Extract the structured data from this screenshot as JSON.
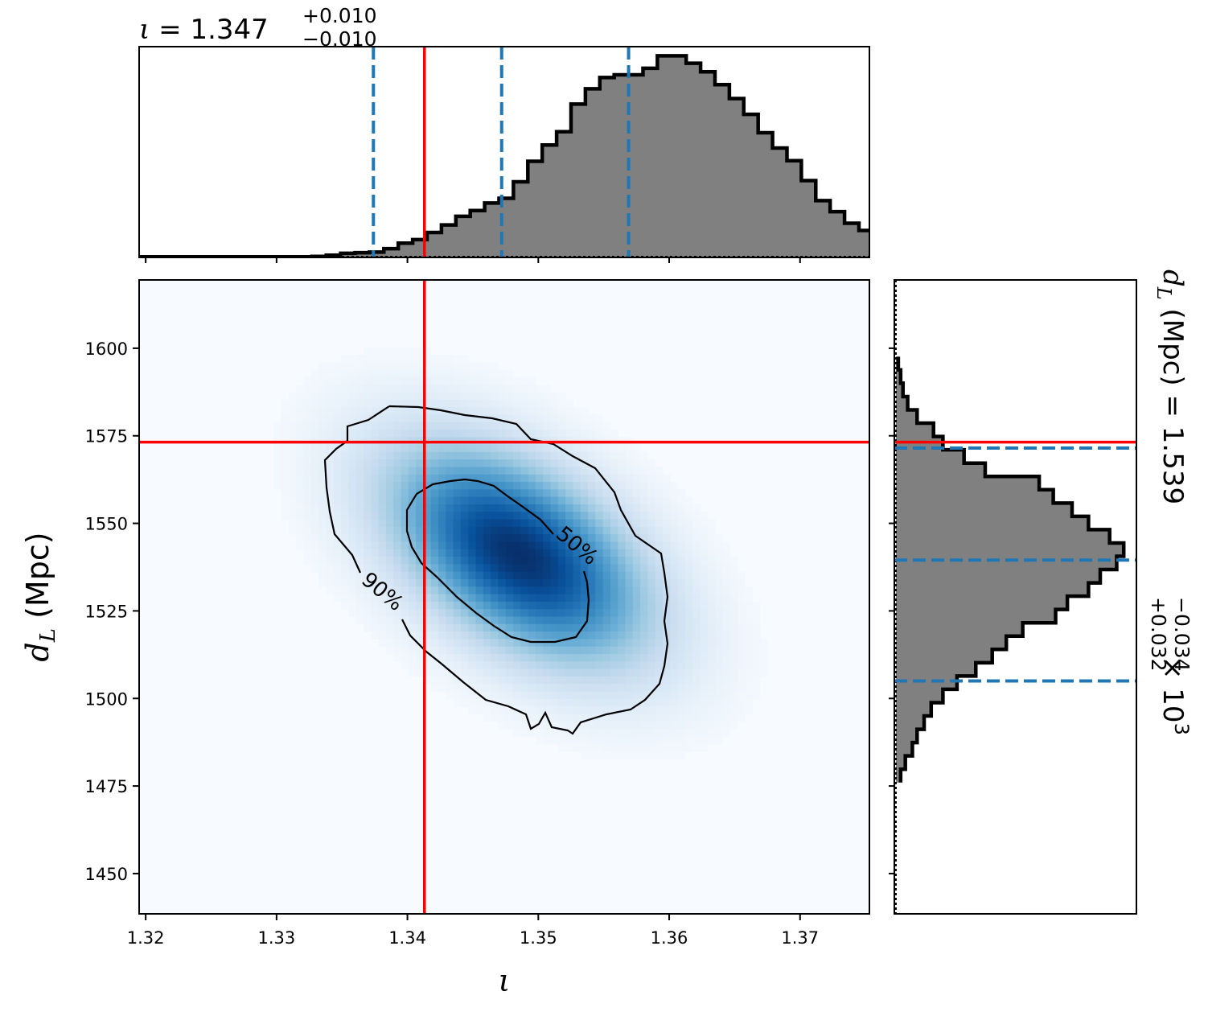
{
  "chart_data": {
    "type": "corner_plot",
    "parameters": [
      {
        "symbol": "ι",
        "label": "ι",
        "median": "1.347",
        "plus": "+0.010",
        "minus": "−0.010"
      },
      {
        "symbol": "d_L",
        "label": "(Mpc)",
        "median": "1.539",
        "plus": "+0.032",
        "minus": "−0.034",
        "scale": "× 10",
        "scale_exp": "3"
      }
    ],
    "joint": {
      "type": "heatmap",
      "xlim": [
        1.3195,
        1.3753
      ],
      "ylim": [
        1438.5,
        1619.5
      ],
      "x_ticks": [
        "1.32",
        "1.33",
        "1.34",
        "1.35",
        "1.36",
        "1.37"
      ],
      "x_tick_values": [
        1.32,
        1.33,
        1.34,
        1.35,
        1.36,
        1.37
      ],
      "y_ticks": [
        "1450",
        "1475",
        "1500",
        "1525",
        "1550",
        "1575",
        "1600"
      ],
      "y_tick_values": [
        1450,
        1475,
        1500,
        1525,
        1550,
        1575,
        1600
      ],
      "xlabel": "ι",
      "ylabel": "(Mpc)",
      "ylabel_symbol": "d",
      "ylabel_sub": "L",
      "colormap": "Blues",
      "peak": [
        1.3485,
        1541
      ],
      "contour_labels": [
        "50%",
        "90%"
      ],
      "truth": {
        "x": 1.3413,
        "y": 1573.2
      },
      "grid": false
    },
    "hist_x": {
      "type": "histogram",
      "xlim": [
        1.3195,
        1.3753
      ],
      "bin_edges_start": 1.3195,
      "bin_width": 0.0011,
      "counts": [
        0.003,
        0.003,
        0.003,
        0.003,
        0.003,
        0.003,
        0.003,
        0.003,
        0.003,
        0.003,
        0.003,
        0.003,
        0.005,
        0.011,
        0.02,
        0.023,
        0.026,
        0.043,
        0.07,
        0.087,
        0.122,
        0.159,
        0.201,
        0.229,
        0.266,
        0.289,
        0.37,
        0.47,
        0.55,
        0.615,
        0.75,
        0.825,
        0.88,
        0.893,
        0.893,
        0.925,
        0.986,
        0.986,
        0.95,
        0.908,
        0.845,
        0.777,
        0.7,
        0.61,
        0.535,
        0.473,
        0.376,
        0.278,
        0.224,
        0.167,
        0.132,
        0.108,
        0.089,
        0.08,
        0.059,
        0.048,
        0.034,
        0.025,
        0.018,
        0.014,
        0.011,
        0.011,
        0.009,
        0.007,
        0.006,
        0.005,
        0.003,
        0.003,
        0.003,
        0.003,
        0.003,
        0.002,
        0.002,
        0.002,
        0.002,
        0.002,
        0.002,
        0.002,
        0.002,
        0.002,
        0.002,
        0.002,
        0.002,
        0.002,
        0.002,
        0.002,
        0.002,
        0.002,
        0.002,
        0.002,
        0.002,
        0.002,
        0.002,
        0.002,
        0.002,
        0.002,
        0.002,
        0.002,
        0.002,
        0.002
      ],
      "quantile_lines": [
        1.3374,
        1.3472,
        1.3569
      ],
      "truth": 1.3413
    },
    "hist_y": {
      "type": "histogram",
      "ylim": [
        1438.5,
        1619.5
      ],
      "bin_edges_start": 1476,
      "bin_width": 3.8,
      "counts": [
        0.02,
        0.04,
        0.07,
        0.09,
        0.12,
        0.15,
        0.2,
        0.26,
        0.34,
        0.41,
        0.47,
        0.54,
        0.68,
        0.73,
        0.82,
        0.87,
        0.94,
        0.97,
        0.91,
        0.82,
        0.75,
        0.67,
        0.61,
        0.38,
        0.29,
        0.2,
        0.16,
        0.09,
        0.05,
        0.03,
        0.02,
        0.01
      ],
      "quantile_lines": [
        1505,
        1539.5,
        1571.5
      ],
      "truth": 1573.2
    }
  },
  "colors": {
    "truth": "#ff0000",
    "quantile": "#1f77b4",
    "hist_fill": "#808080",
    "hist_edge": "#000000",
    "cmap_low": "#f7fbff",
    "cmap_high": "#08306b"
  }
}
